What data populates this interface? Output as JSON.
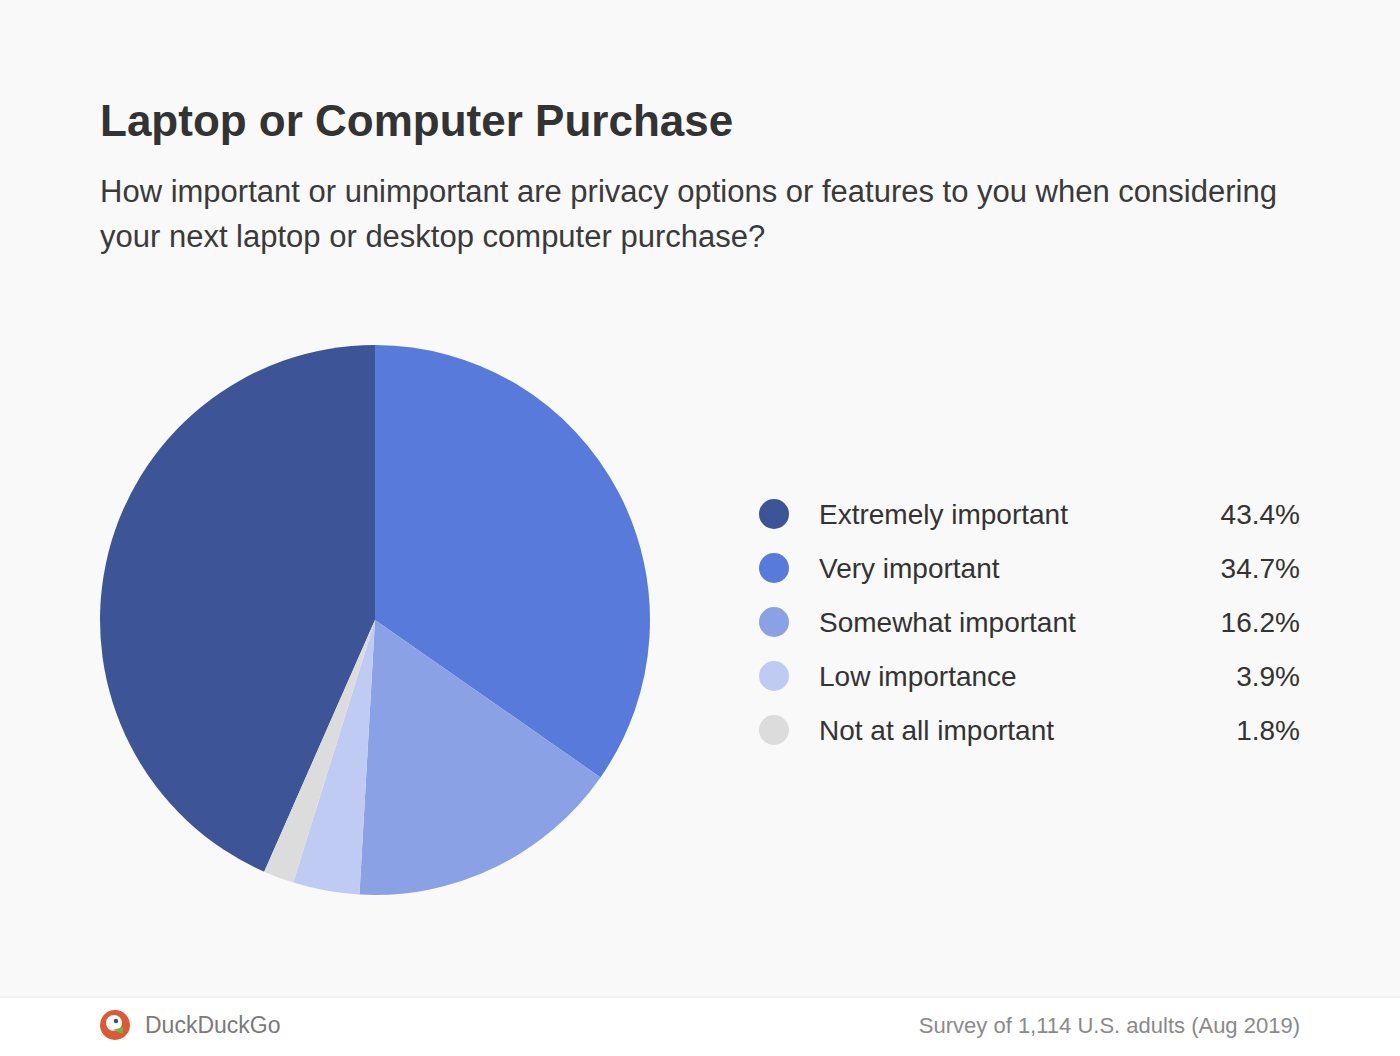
{
  "chart_data": {
    "type": "pie",
    "title": "Laptop or Computer Purchase",
    "subtitle": "How important or unimportant are privacy options or features to you when considering your next laptop or desktop computer purchase?",
    "categories": [
      "Extremely important",
      "Very important",
      "Somewhat important",
      "Low importance",
      "Not at all important"
    ],
    "values": [
      43.4,
      34.7,
      16.2,
      3.9,
      1.8
    ],
    "value_labels": [
      "43.4%",
      "34.7%",
      "16.2%",
      "3.9%",
      "1.8%"
    ],
    "colors": [
      "#3d5596",
      "#587bdb",
      "#8aa1e5",
      "#bfcbf3",
      "#dcdcdc"
    ],
    "legend": "right",
    "source": "DuckDuckGo",
    "note": "Survey of 1,114 U.S. adults (Aug 2019)"
  }
}
